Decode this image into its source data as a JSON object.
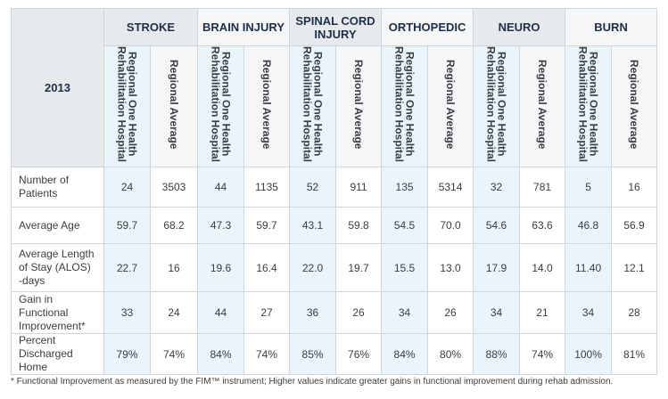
{
  "year": "2013",
  "categories": [
    "STROKE",
    "BRAIN INJURY",
    "SPINAL CORD INJURY",
    "ORTHOPEDIC",
    "NEURO",
    "BURN"
  ],
  "subheaders": {
    "hospital": "Regional One Health\nRehabilitation Hospital",
    "average": "Regional Average"
  },
  "rows": [
    {
      "label": "Number of\nPatients",
      "values": [
        "24",
        "3503",
        "44",
        "1135",
        "52",
        "911",
        "135",
        "5314",
        "32",
        "781",
        "5",
        "16"
      ]
    },
    {
      "label": "Average Age",
      "values": [
        "59.7",
        "68.2",
        "47.3",
        "59.7",
        "43.1",
        "59.8",
        "54.5",
        "70.0",
        "54.6",
        "63.6",
        "46.8",
        "56.9"
      ]
    },
    {
      "label": "Average Length\nof Stay (ALOS)\n-days",
      "values": [
        "22.7",
        "16",
        "19.6",
        "16.4",
        "22.0",
        "19.7",
        "15.5",
        "13.0",
        "17.9",
        "14.0",
        "11.40",
        "12.1"
      ]
    },
    {
      "label": "Gain in Functional\nImprovement*",
      "values": [
        "33",
        "24",
        "44",
        "27",
        "36",
        "26",
        "34",
        "26",
        "34",
        "21",
        "34",
        "28"
      ]
    },
    {
      "label": "Percent\nDischarged Home",
      "values": [
        "79%",
        "74%",
        "84%",
        "74%",
        "85%",
        "76%",
        "84%",
        "80%",
        "88%",
        "74%",
        "100%",
        "81%"
      ]
    }
  ],
  "footnote": "* Functional Improvement as measured by the FIM™ instrument; Higher values indicate greater gains in functional improvement during rehab admission."
}
